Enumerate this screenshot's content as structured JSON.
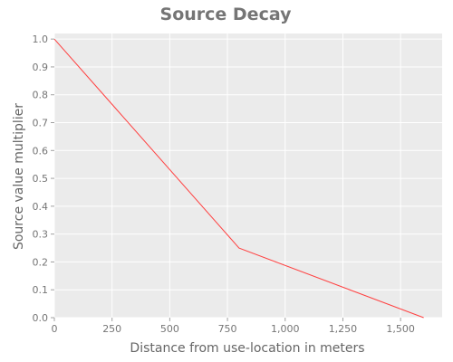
{
  "chart_data": {
    "type": "line",
    "title": "Source Decay",
    "xlabel": "Distance from use-location in meters",
    "ylabel": "Source value multiplier",
    "xlim": [
      0,
      1680
    ],
    "ylim": [
      0,
      1.02
    ],
    "x_ticks": [
      0,
      250,
      500,
      750,
      1000,
      1250,
      1500
    ],
    "x_tick_labels": [
      "0",
      "250",
      "500",
      "750",
      "1,000",
      "1,250",
      "1,500"
    ],
    "y_ticks": [
      0,
      0.1,
      0.2,
      0.3,
      0.4,
      0.5,
      0.6,
      0.7,
      0.8,
      0.9,
      1.0
    ],
    "y_tick_labels": [
      "0.0",
      "0.1",
      "0.2",
      "0.3",
      "0.4",
      "0.5",
      "0.6",
      "0.7",
      "0.8",
      "0.9",
      "1.0"
    ],
    "grid": true,
    "series": [
      {
        "color": "#ff4040",
        "x": [
          0,
          800,
          1600
        ],
        "y": [
          1.0,
          0.25,
          0.0
        ]
      }
    ]
  }
}
